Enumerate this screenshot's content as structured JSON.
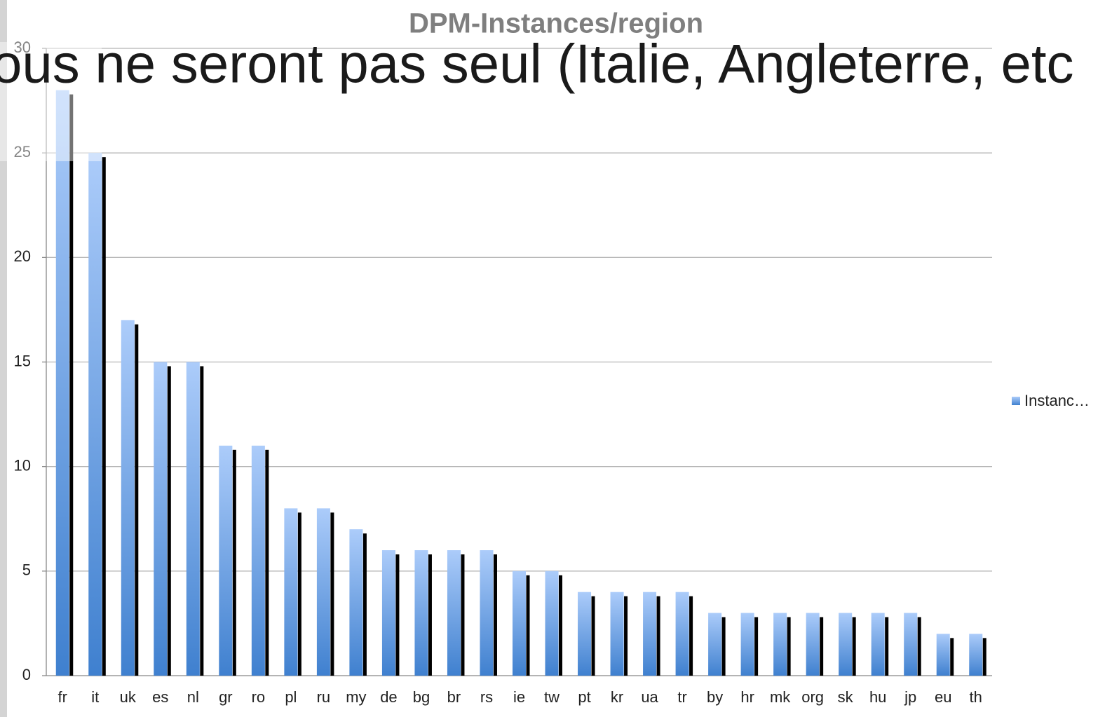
{
  "chart_data": {
    "type": "bar",
    "title": "DPM-Instances/region",
    "overlay_text": "ous ne seront pas seul  (Italie, Angleterre, etc",
    "categories": [
      "fr",
      "it",
      "uk",
      "es",
      "nl",
      "gr",
      "ro",
      "pl",
      "ru",
      "my",
      "de",
      "bg",
      "br",
      "rs",
      "ie",
      "tw",
      "pt",
      "kr",
      "ua",
      "tr",
      "by",
      "hr",
      "mk",
      "org",
      "sk",
      "hu",
      "jp",
      "eu",
      "th"
    ],
    "series": [
      {
        "name": "Instanc…",
        "color": "#3f80cf",
        "values": [
          28,
          25,
          17,
          15,
          15,
          11,
          11,
          8,
          8,
          7,
          6,
          6,
          6,
          6,
          5,
          5,
          4,
          4,
          4,
          4,
          3,
          3,
          3,
          3,
          3,
          3,
          3,
          2,
          2
        ]
      }
    ],
    "ylim": [
      0,
      30
    ],
    "yticks": [
      0,
      5,
      10,
      15,
      20,
      25,
      30
    ],
    "grid": true,
    "legend": "right"
  }
}
